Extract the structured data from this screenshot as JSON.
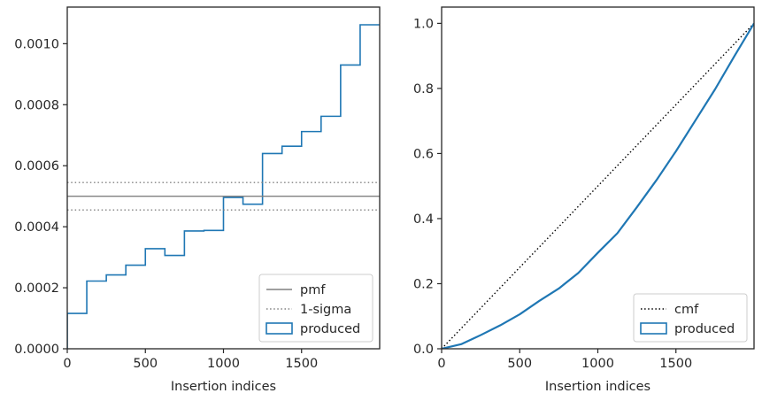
{
  "chart_data": [
    {
      "type": "step",
      "xlabel": "Insertion indices",
      "ylabel": "",
      "xlim": [
        0,
        2000
      ],
      "ylim": [
        0,
        0.00112
      ],
      "x_ticks": [
        0,
        500,
        1000,
        1500
      ],
      "y_ticks": [
        0.0,
        0.0002,
        0.0004,
        0.0006,
        0.0008,
        0.001
      ],
      "y_tick_labels": [
        "0.0000",
        "0.0002",
        "0.0004",
        "0.0006",
        "0.0008",
        "0.0010"
      ],
      "bin_edges": [
        0,
        125,
        250,
        375,
        500,
        625,
        750,
        875,
        1000,
        1125,
        1250,
        1375,
        1500,
        1625,
        1750,
        1875,
        2000
      ],
      "series": [
        {
          "name": "produced",
          "style": "step",
          "color": "#1f77b4",
          "values": [
            0.000116,
            0.000222,
            0.000242,
            0.000274,
            0.000328,
            0.000306,
            0.000386,
            0.000388,
            0.000496,
            0.000474,
            0.00064,
            0.000664,
            0.000712,
            0.000762,
            0.00093,
            0.001062
          ]
        },
        {
          "name": "pmf",
          "style": "hline",
          "color": "#808080",
          "value": 0.0005
        },
        {
          "name": "1-sigma",
          "style": "hline-dotted",
          "color": "#808080",
          "values": [
            0.000455,
            0.000545
          ]
        }
      ],
      "legend": {
        "placement": "lower-right",
        "entries": [
          {
            "label": "pmf",
            "style": "line",
            "color": "#808080"
          },
          {
            "label": "1-sigma",
            "style": "dotted",
            "color": "#808080"
          },
          {
            "label": "produced",
            "style": "patch",
            "color": "#1f77b4"
          }
        ]
      }
    },
    {
      "type": "line",
      "xlabel": "Insertion indices",
      "ylabel": "",
      "xlim": [
        0,
        2000
      ],
      "ylim": [
        0,
        1.05
      ],
      "x_ticks": [
        0,
        500,
        1000,
        1500
      ],
      "y_ticks": [
        0.0,
        0.2,
        0.4,
        0.6,
        0.8,
        1.0
      ],
      "y_tick_labels": [
        "0.0",
        "0.2",
        "0.4",
        "0.6",
        "0.8",
        "1.0"
      ],
      "series": [
        {
          "name": "cmf",
          "style": "dotted",
          "color": "#000000",
          "x": [
            0,
            2000
          ],
          "y": [
            0,
            1.0
          ]
        },
        {
          "name": "produced",
          "style": "line",
          "color": "#1f77b4",
          "x": [
            0,
            125,
            250,
            375,
            500,
            625,
            750,
            875,
            1000,
            1125,
            1250,
            1375,
            1500,
            1625,
            1750,
            1875,
            2000
          ],
          "y": [
            0,
            0.014,
            0.042,
            0.072,
            0.106,
            0.147,
            0.185,
            0.233,
            0.295,
            0.355,
            0.435,
            0.518,
            0.607,
            0.702,
            0.797,
            0.9,
            1.0
          ]
        }
      ],
      "legend": {
        "placement": "lower-right",
        "entries": [
          {
            "label": "cmf",
            "style": "dotted",
            "color": "#000000"
          },
          {
            "label": "produced",
            "style": "patch",
            "color": "#1f77b4"
          }
        ]
      }
    }
  ]
}
